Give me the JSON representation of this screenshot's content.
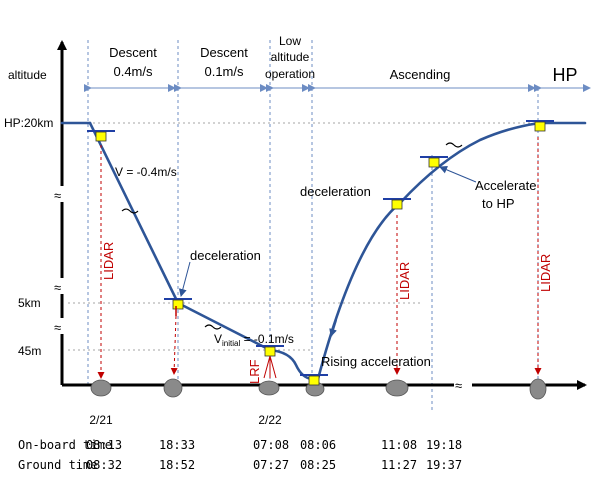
{
  "axis": {
    "y_label": "altitude",
    "ticks": {
      "hp": "HP:20km",
      "km5": "5km",
      "m45": "45m"
    },
    "break_symbol": "≈"
  },
  "phases": {
    "descent1": [
      "Descent",
      "0.4m/s"
    ],
    "descent2": [
      "Descent",
      "0.1m/s"
    ],
    "low_alt": [
      "Low",
      "altitude",
      "operation"
    ],
    "ascending": "Ascending",
    "hp": "HP"
  },
  "annotations": {
    "v1": "V = -0.4m/s",
    "v2_prefix": "V",
    "v2_sub": "initial",
    "v2_suffix": " = -0.1m/s",
    "decel1": "deceleration",
    "decel2": "deceleration",
    "rising": "Rising acceleration",
    "accel": [
      "Accelerate",
      "to HP"
    ],
    "lidar": "LIDAR",
    "lrf": "LRF"
  },
  "dates": {
    "d1": "2/21",
    "d2": "2/22"
  },
  "times": {
    "onboard_label": "On-board time",
    "ground_label": "Ground time",
    "onboard": [
      "08:13",
      "18:33",
      "07:08",
      "08:06",
      "11:08",
      "19:18"
    ],
    "ground": [
      "08:32",
      "18:52",
      "07:27",
      "08:25",
      "11:27",
      "19:37"
    ]
  },
  "colors": {
    "trajectory": "#2e5597",
    "dashed": "#6c8cc3",
    "lidar": "#c00000",
    "spacecraft_body": "#ffff00",
    "spacecraft_panel": "#1f3fa5",
    "asteroid": "#8a8a8a"
  },
  "icons": [
    "spacecraft-icon",
    "asteroid-icon",
    "wavy-break-icon"
  ]
}
